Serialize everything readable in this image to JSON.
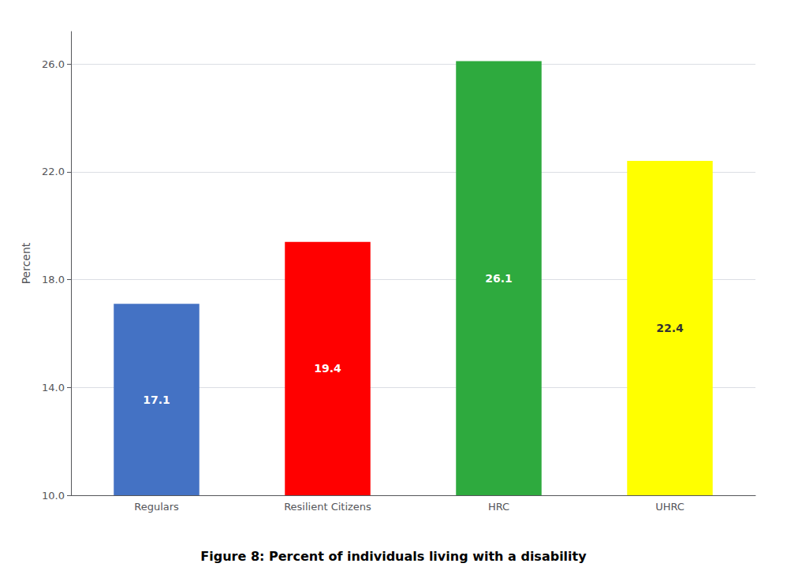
{
  "chart_data": {
    "type": "bar",
    "title": "Figure 8: Percent of individuals living with a disability",
    "y_label": "Percent",
    "categories": [
      "Regulars",
      "Resilient Citizens",
      "HRC",
      "UHRC"
    ],
    "values": [
      17.1,
      19.4,
      26.1,
      22.4
    ],
    "colors": [
      "#4472C4",
      "#FF0000",
      "#2EAA3E",
      "#FFFF00"
    ],
    "ylim": [
      10.0,
      27.2
    ],
    "yticks": [
      {
        "value": 10.0,
        "label": "10.0"
      },
      {
        "value": 14.0,
        "label": "14.0"
      },
      {
        "value": 18.0,
        "label": "18.0"
      },
      {
        "value": 22.0,
        "label": "22.0"
      },
      {
        "value": 26.0,
        "label": "26.0"
      }
    ],
    "grid": true,
    "data_labels": true
  }
}
